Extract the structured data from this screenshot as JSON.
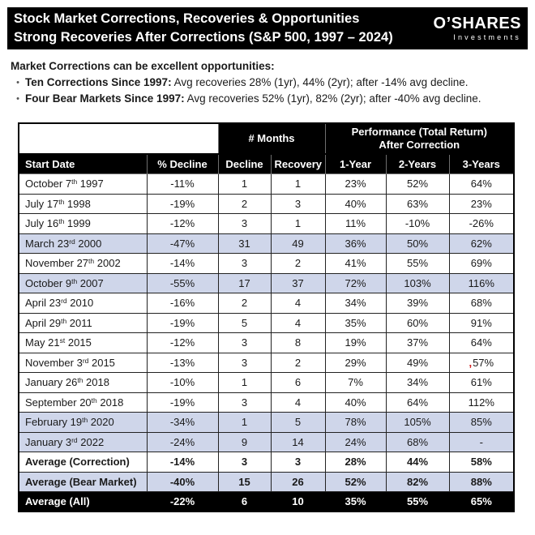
{
  "header": {
    "title_line1": "Stock Market Corrections, Recoveries & Opportunities",
    "title_line2": "Strong Recoveries After Corrections (S&P 500, 1997 – 2024)",
    "brand": {
      "name": "O’SHARES",
      "subtitle": "Investments"
    }
  },
  "intro": {
    "heading": "Market Corrections can be excellent opportunities:",
    "bullet_glyph": "•",
    "bullets": [
      {
        "bold": "Ten Corrections Since 1997:",
        "text": " Avg recoveries 28% (1yr), 44% (2yr); after -14% avg decline."
      },
      {
        "bold": "Four Bear Markets Since 1997:",
        "text": " Avg recoveries 52% (1yr), 82% (2yr); after -40% avg decline."
      }
    ]
  },
  "table": {
    "group_headers": {
      "months": "# Months",
      "performance_line1": "Performance (Total Return)",
      "performance_line2": "After Correction"
    },
    "columns": [
      "Start Date",
      "% Decline",
      "Decline",
      "Recovery",
      "1-Year",
      "2-Years",
      "3-Years"
    ],
    "colors": {
      "highlight_row": "#cfd6ea",
      "header_bg": "#000000",
      "header_text": "#ffffff",
      "artifact_red": "#cc1111"
    },
    "rows": [
      {
        "date": "October 7",
        "ordinal": "th",
        "year": "1997",
        "decline_pct": "-11%",
        "months_decline": "1",
        "months_recovery": "1",
        "return_1y": "23%",
        "return_2y": "52%",
        "return_3y": "64%",
        "style": "plain"
      },
      {
        "date": "July 17",
        "ordinal": "th",
        "year": "1998",
        "decline_pct": "-19%",
        "months_decline": "2",
        "months_recovery": "3",
        "return_1y": "40%",
        "return_2y": "63%",
        "return_3y": "23%",
        "style": "plain"
      },
      {
        "date": "July 16",
        "ordinal": "th",
        "year": "1999",
        "decline_pct": "-12%",
        "months_decline": "3",
        "months_recovery": "1",
        "return_1y": "11%",
        "return_2y": "-10%",
        "return_3y": "-26%",
        "style": "plain"
      },
      {
        "date": "March 23",
        "ordinal": "rd",
        "year": "2000",
        "decline_pct": "-47%",
        "months_decline": "31",
        "months_recovery": "49",
        "return_1y": "36%",
        "return_2y": "50%",
        "return_3y": "62%",
        "style": "band"
      },
      {
        "date": "November 27",
        "ordinal": "th",
        "year": "2002",
        "decline_pct": "-14%",
        "months_decline": "3",
        "months_recovery": "2",
        "return_1y": "41%",
        "return_2y": "55%",
        "return_3y": "69%",
        "style": "plain"
      },
      {
        "date": "October 9",
        "ordinal": "th",
        "year": "2007",
        "decline_pct": "-55%",
        "months_decline": "17",
        "months_recovery": "37",
        "return_1y": "72%",
        "return_2y": "103%",
        "return_3y": "116%",
        "style": "band"
      },
      {
        "date": "April 23",
        "ordinal": "rd",
        "year": "2010",
        "decline_pct": "-16%",
        "months_decline": "2",
        "months_recovery": "4",
        "return_1y": "34%",
        "return_2y": "39%",
        "return_3y": "68%",
        "style": "plain"
      },
      {
        "date": "April 29",
        "ordinal": "th",
        "year": "2011",
        "decline_pct": "-19%",
        "months_decline": "5",
        "months_recovery": "4",
        "return_1y": "35%",
        "return_2y": "60%",
        "return_3y": "91%",
        "style": "plain"
      },
      {
        "date": "May 21",
        "ordinal": "st",
        "year": "2015",
        "decline_pct": "-12%",
        "months_decline": "3",
        "months_recovery": "8",
        "return_1y": "19%",
        "return_2y": "37%",
        "return_3y": "64%",
        "style": "plain"
      },
      {
        "date": "November 3",
        "ordinal": "rd",
        "year": "2015",
        "decline_pct": "-13%",
        "months_decline": "3",
        "months_recovery": "2",
        "return_1y": "29%",
        "return_2y": "49%",
        "return_3y": "57%",
        "return_3y_mark": ",",
        "style": "plain"
      },
      {
        "date": "January 26",
        "ordinal": "th",
        "year": "2018",
        "decline_pct": "-10%",
        "months_decline": "1",
        "months_recovery": "6",
        "return_1y": "7%",
        "return_2y": "34%",
        "return_3y": "61%",
        "style": "plain"
      },
      {
        "date": "September 20",
        "ordinal": "th",
        "year": "2018",
        "decline_pct": "-19%",
        "months_decline": "3",
        "months_recovery": "4",
        "return_1y": "40%",
        "return_2y": "64%",
        "return_3y": "112%",
        "style": "plain"
      },
      {
        "date": "February 19",
        "ordinal": "th",
        "year": "2020",
        "decline_pct": "-34%",
        "months_decline": "1",
        "months_recovery": "5",
        "return_1y": "78%",
        "return_2y": "105%",
        "return_3y": "85%",
        "style": "band"
      },
      {
        "date": "January 3",
        "ordinal": "rd",
        "year": "2022",
        "decline_pct": "-24%",
        "months_decline": "9",
        "months_recovery": "14",
        "return_1y": "24%",
        "return_2y": "68%",
        "return_3y": "-",
        "style": "band"
      },
      {
        "date": "Average (Correction)",
        "ordinal": "",
        "year": "",
        "decline_pct": "-14%",
        "months_decline": "3",
        "months_recovery": "3",
        "return_1y": "28%",
        "return_2y": "44%",
        "return_3y": "58%",
        "style": "avg"
      },
      {
        "date": "Average (Bear Market)",
        "ordinal": "",
        "year": "",
        "decline_pct": "-40%",
        "months_decline": "15",
        "months_recovery": "26",
        "return_1y": "52%",
        "return_2y": "82%",
        "return_3y": "88%",
        "style": "avg-band"
      },
      {
        "date": "Average (All)",
        "ordinal": "",
        "year": "",
        "decline_pct": "-22%",
        "months_decline": "6",
        "months_recovery": "10",
        "return_1y": "35%",
        "return_2y": "55%",
        "return_3y": "65%",
        "style": "avg-black"
      }
    ]
  }
}
